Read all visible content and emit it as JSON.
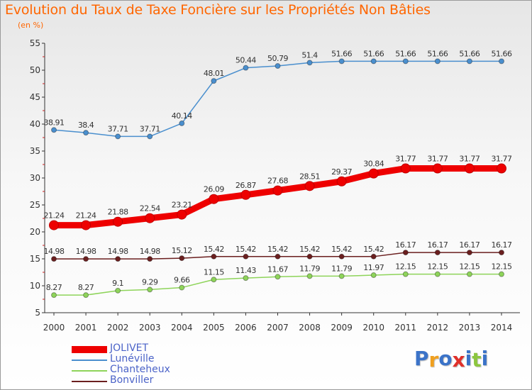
{
  "header": {
    "title": "Evolution du Taux de Taxe Foncière sur les Propriétés Non Bâties",
    "subtitle": "(en %)"
  },
  "logo": {
    "letters": [
      {
        "ch": "P",
        "color": "#3b73c8"
      },
      {
        "ch": "r",
        "color": "#f0a020"
      },
      {
        "ch": "o",
        "color": "#3b73c8"
      },
      {
        "ch": "x",
        "color": "#e0302a"
      },
      {
        "ch": "i",
        "color": "#3b73c8"
      },
      {
        "ch": "t",
        "color": "#8cc63f"
      },
      {
        "ch": "i",
        "color": "#3b73c8"
      }
    ]
  },
  "chart_data": {
    "type": "line",
    "title": "Evolution du Taux de Taxe Foncière sur les Propriétés Non Bâties",
    "ylabel": "(en %)",
    "xlabel": "",
    "ylim": [
      5,
      55
    ],
    "yticks": [
      5,
      10,
      15,
      20,
      25,
      30,
      35,
      40,
      45,
      50,
      55
    ],
    "grid": false,
    "legend_position": "bottom-left",
    "x": [
      "2000",
      "2001",
      "2002",
      "2003",
      "2004",
      "2005",
      "2006",
      "2007",
      "2008",
      "2009",
      "2010",
      "2011",
      "2012",
      "2013",
      "2014"
    ],
    "series": [
      {
        "name": "JOLIVET",
        "color": "#ee0000",
        "emphasis": true,
        "values": [
          21.24,
          21.24,
          21.88,
          22.54,
          23.21,
          26.09,
          26.87,
          27.68,
          28.51,
          29.37,
          30.84,
          31.77,
          31.77,
          31.77,
          31.77
        ]
      },
      {
        "name": "Lunéville",
        "color": "#4a8fce",
        "values": [
          38.91,
          38.4,
          37.71,
          37.71,
          40.14,
          48.01,
          50.44,
          50.79,
          51.4,
          51.66,
          51.66,
          51.66,
          51.66,
          51.66,
          51.66
        ]
      },
      {
        "name": "Chanteheux",
        "color": "#8ed45a",
        "values": [
          8.27,
          8.27,
          9.1,
          9.29,
          9.66,
          11.15,
          11.43,
          11.67,
          11.79,
          11.79,
          11.97,
          12.15,
          12.15,
          12.15,
          12.15
        ]
      },
      {
        "name": "Bonviller",
        "color": "#6b1f1f",
        "values": [
          14.98,
          14.98,
          14.98,
          14.98,
          15.12,
          15.42,
          15.42,
          15.42,
          15.42,
          15.42,
          15.42,
          16.17,
          16.17,
          16.17,
          16.17
        ]
      }
    ]
  }
}
